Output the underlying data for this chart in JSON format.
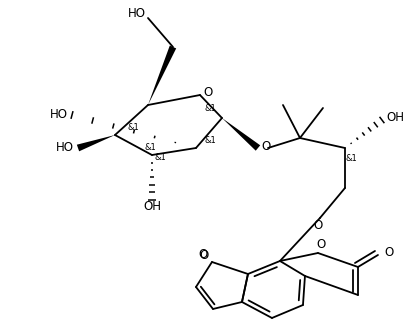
{
  "bg_color": "#ffffff",
  "lw": 1.3,
  "figsize": [
    4.08,
    3.33
  ],
  "dpi": 100,
  "xlim": [
    0,
    408
  ],
  "ylim": [
    0,
    333
  ]
}
